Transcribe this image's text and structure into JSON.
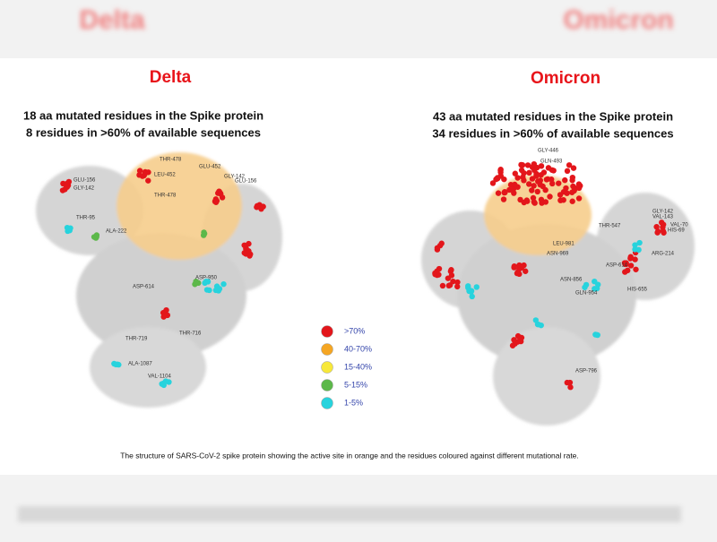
{
  "header": {
    "left": "Delta",
    "right": "Omicron"
  },
  "panels": [
    {
      "title": "Delta",
      "lines": [
        "18 aa mutated residues in the Spike protein",
        "8 residues in >60% of available sequences"
      ],
      "residues": [
        "GLU-156",
        "GLY-142",
        "THR-95",
        "ALA-222",
        "THR-478",
        "LEU-452",
        "GLU-452",
        "GLY-142",
        "THR-478",
        "GLU-156",
        "ASP-950",
        "ASP-614",
        "THR-716",
        "THR-719",
        "ALA-1087",
        "VAL-1104"
      ]
    },
    {
      "title": "Omicron",
      "lines": [
        "43 aa mutated residues in the Spike protein",
        "34 residues in >60% of available sequences"
      ],
      "residues": [
        "GLY-446",
        "GLN-493",
        "THR-547",
        "GLY-142",
        "VAL-143",
        "VAL-70",
        "HIS-69",
        "ASP-614",
        "HIS-655",
        "ARG-214",
        "LEU-981",
        "ASN-969",
        "ASN-856",
        "GLN-954",
        "ASP-796"
      ]
    }
  ],
  "legend": [
    {
      "label": ">70%",
      "color": "#e3161b"
    },
    {
      "label": "40-70%",
      "color": "#f5a623"
    },
    {
      "label": "15-40%",
      "color": "#f7e83a"
    },
    {
      "label": "5-15%",
      "color": "#5cb84a"
    },
    {
      "label": "1-5%",
      "color": "#27d3dd"
    }
  ],
  "caption": "The structure of SARS-CoV-2 spike protein showing the active site in orange and the residues coloured against different mutational rate."
}
